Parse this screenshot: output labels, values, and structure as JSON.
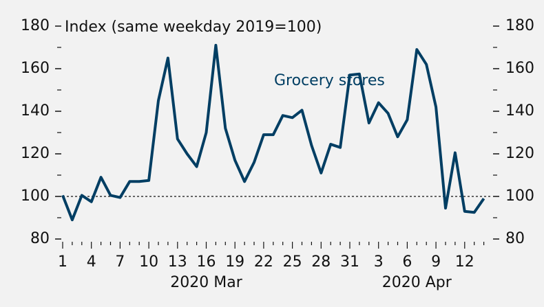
{
  "chart_data": {
    "type": "line",
    "title": "Index (same weekday 2019=100)",
    "categories": [
      "1",
      null,
      null,
      "4",
      null,
      null,
      "7",
      null,
      null,
      "10",
      null,
      null,
      "13",
      null,
      null,
      "16",
      null,
      null,
      "19",
      null,
      null,
      "22",
      null,
      null,
      "25",
      null,
      null,
      "28",
      null,
      null,
      "31",
      null,
      null,
      "3",
      null,
      null,
      "6",
      null,
      null,
      "9",
      null,
      null,
      "12",
      null,
      null
    ],
    "month_labels": [
      {
        "label": "2020 Mar",
        "at": 15
      },
      {
        "label": "2020 Apr",
        "at": 37
      }
    ],
    "series": [
      {
        "name": "Grocery stores",
        "color": "#003e63",
        "values": [
          100.5,
          89,
          100.5,
          97.5,
          109,
          100.5,
          99.5,
          107,
          107,
          107.5,
          145,
          165,
          127,
          120,
          114,
          130,
          171,
          132,
          117,
          107,
          116,
          129,
          129,
          138,
          137,
          140.5,
          124,
          111,
          124.5,
          123,
          157,
          157.5,
          134.5,
          144,
          139,
          128,
          136,
          169,
          162,
          142,
          94.5,
          120.5,
          93,
          92.5,
          99
        ]
      }
    ],
    "ylim": [
      80,
      180
    ],
    "yticks": [
      80,
      100,
      120,
      140,
      160,
      180
    ],
    "reference_line": 100
  }
}
